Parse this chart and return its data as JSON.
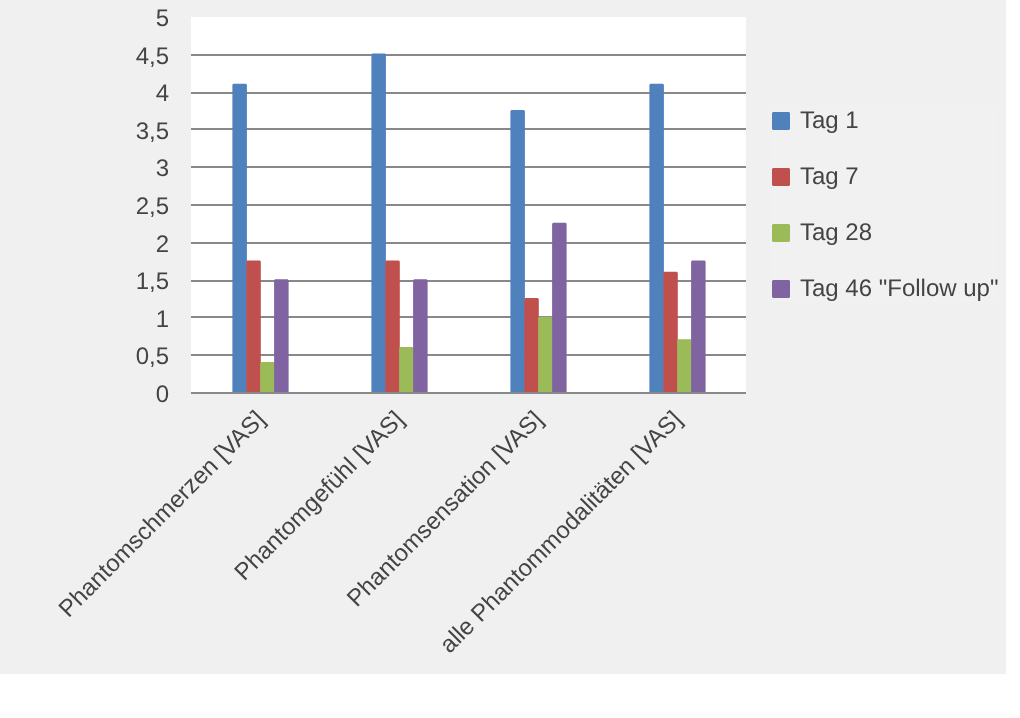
{
  "chart_data": {
    "type": "bar",
    "categories": [
      "Phantomschmerzen [VAS]",
      "Phantomgefühl [VAS]",
      "Phantomsensation [VAS]",
      "alle Phantommodalitäten [VAS]"
    ],
    "series": [
      {
        "name": "Tag 1",
        "color": "#4f81bd",
        "values": [
          4.1,
          4.5,
          3.75,
          4.1
        ]
      },
      {
        "name": "Tag 7",
        "color": "#c0504d",
        "values": [
          1.75,
          1.75,
          1.25,
          1.6
        ]
      },
      {
        "name": "Tag 28",
        "color": "#9bbb59",
        "values": [
          0.4,
          0.6,
          1.0,
          0.7
        ]
      },
      {
        "name": "Tag 46 \"Follow up\"",
        "color": "#8064a2",
        "values": [
          1.5,
          1.5,
          2.25,
          1.75
        ]
      }
    ],
    "ylim": [
      0,
      5
    ],
    "yticks": [
      0,
      {
        "value": 0.5,
        "label": "0,5"
      },
      1,
      {
        "value": 1.5,
        "label": "1,5"
      },
      2,
      {
        "value": 2.5,
        "label": "2,5"
      },
      3,
      {
        "value": 3.5,
        "label": "3,5"
      },
      4,
      {
        "value": 4.5,
        "label": "4,5"
      },
      5
    ],
    "grid": "y",
    "legend": "right"
  }
}
